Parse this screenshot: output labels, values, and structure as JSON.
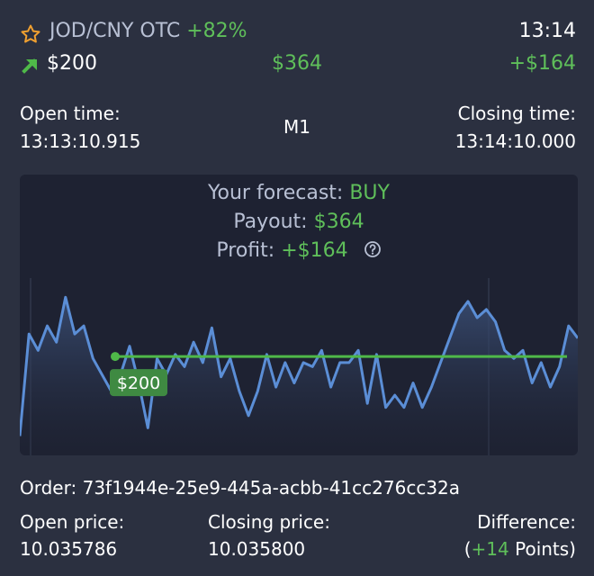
{
  "header": {
    "pair": "JOD/CNY OTC",
    "payout_percent": "+82%",
    "time": "13:14",
    "amount": "$200",
    "payout": "$364",
    "profit": "+$164",
    "direction_icon": "arrow-up-right-icon",
    "favorite_icon": "star-icon"
  },
  "times": {
    "open_label": "Open time:",
    "open_value": "13:13:10.915",
    "timeframe": "M1",
    "close_label": "Closing time:",
    "close_value": "13:14:10.000"
  },
  "forecast": {
    "forecast_label": "Your forecast:",
    "forecast_value": "BUY",
    "payout_label": "Payout:",
    "payout_value": "$364",
    "profit_label": "Profit:",
    "profit_value": "+$164",
    "help_icon": "question-circle-icon"
  },
  "chart_data": {
    "type": "line",
    "entry_label": "$200",
    "series": [
      {
        "values": [
          2,
          52,
          44,
          56,
          48,
          70,
          52,
          56,
          40,
          32,
          24,
          32,
          46,
          28,
          6,
          40,
          32,
          42,
          36,
          48,
          38,
          55,
          31,
          40,
          24,
          12,
          24,
          42,
          26,
          38,
          28,
          38,
          36,
          44,
          26,
          38,
          38,
          44,
          18,
          42,
          16,
          22,
          16,
          28,
          16,
          26,
          38,
          50,
          62,
          68,
          60,
          64,
          58,
          44,
          40,
          44,
          28,
          38,
          26,
          36,
          56,
          50
        ]
      }
    ],
    "entry_line_value": 41,
    "color_line": "#5b8ed6",
    "color_entry": "#4fb949"
  },
  "order": {
    "label": "Order:",
    "id": "73f1944e-25e9-445a-acbb-41cc276cc32a"
  },
  "prices": {
    "open_label": "Open price:",
    "open_value": "10.035786",
    "close_label": "Closing price:",
    "close_value": "10.035800",
    "diff_label": "Difference:",
    "diff_prefix": "(",
    "diff_points": "+14",
    "diff_suffix": " Points)"
  },
  "colors": {
    "background": "#2b3040",
    "panel": "#1e2232",
    "green": "#5fbf5a",
    "star": "#f0a030"
  }
}
